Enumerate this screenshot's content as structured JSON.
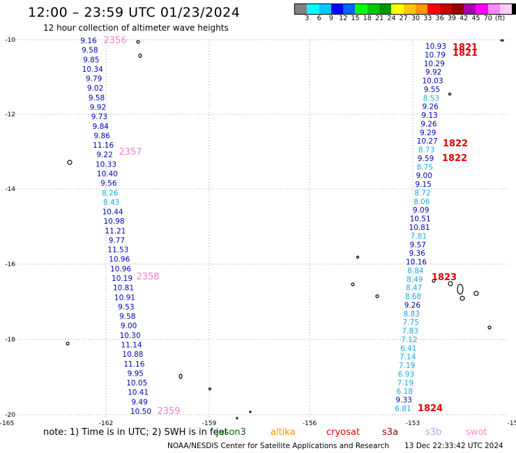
{
  "header": {
    "title": "12:00 – 23:59 UTC 01/23/2024",
    "subtitle": "12 hour collection of altimeter wave heights"
  },
  "colorbar": {
    "colors": [
      "#808080",
      "#00ffff",
      "#00c8ff",
      "#0000ff",
      "#0064ff",
      "#00ff00",
      "#00c800",
      "#009600",
      "#ffff00",
      "#ffc800",
      "#ff9600",
      "#ff0000",
      "#c80000",
      "#960000",
      "#aa00aa",
      "#ff00ff",
      "#ff88ff",
      "#ffccff",
      "#000000"
    ],
    "labels": [
      "3",
      "6",
      "9",
      "12",
      "15",
      "18",
      "21",
      "24",
      "27",
      "30",
      "33",
      "36",
      "39",
      "42",
      "45",
      "70",
      "(ft)"
    ]
  },
  "axes": {
    "y_ticks": [
      "-10",
      "-12",
      "-14",
      "-16",
      "-18",
      "-20"
    ],
    "x_ticks": [
      "-165",
      "-162",
      "-159",
      "-156",
      "-153",
      "-15"
    ]
  },
  "track1": {
    "values": [
      "9.16",
      "9.58",
      "9.85",
      "10.34",
      "9.79",
      "9.02",
      "9.58",
      "9.92",
      "9.73",
      "9.84",
      "9.86",
      "11.16",
      "9.22",
      "10.33",
      "10.40",
      "9.56",
      "8.26",
      "8.43",
      "10.44",
      "10.98",
      "11.21",
      "9.77",
      "11.53",
      "10.96",
      "10.96",
      "10.19",
      "10.81",
      "10.91",
      "9.53",
      "9.58",
      "9.00",
      "10.30",
      "11.14",
      "10.88",
      "11.16",
      "9.95",
      "10.05",
      "10.41",
      "9.49",
      "10.50"
    ],
    "time_labels": [
      "2356",
      "2357",
      "2358",
      "2359"
    ]
  },
  "track2": {
    "values": [
      "10.93",
      "10.79",
      "10.29",
      "9.92",
      "10.03",
      "9.55",
      "8.53",
      "9.26",
      "9.13",
      "9.26",
      "9.29",
      "10.27",
      "8.73",
      "9.59",
      "8.75",
      "9.00",
      "9.15",
      "8.72",
      "8.06",
      "9.09",
      "10.51",
      "10.81",
      "7.81",
      "9.57",
      "9.36",
      "10.16",
      "8.84",
      "8.49",
      "8.47",
      "8.68",
      "9.26",
      "8.83",
      "7.75",
      "7.83",
      "7.12",
      "6.41",
      "7.14",
      "7.19",
      "6.93",
      "7.19",
      "6.18",
      "9.33",
      "6.81"
    ],
    "time_labels": [
      "1821",
      "1821",
      "1822",
      "1822",
      "1823",
      "1824"
    ]
  },
  "note": "note:  1) Time is in UTC;  2) SWH is in feet",
  "satellites": [
    "jason3",
    "altika",
    "cryosat",
    "s3a",
    "s3b",
    "swot"
  ],
  "credit": "NOAA/NESDIS Center for Satellite Applications and Research",
  "stamp": "13 Dec 22:33:42 UTC 2024"
}
